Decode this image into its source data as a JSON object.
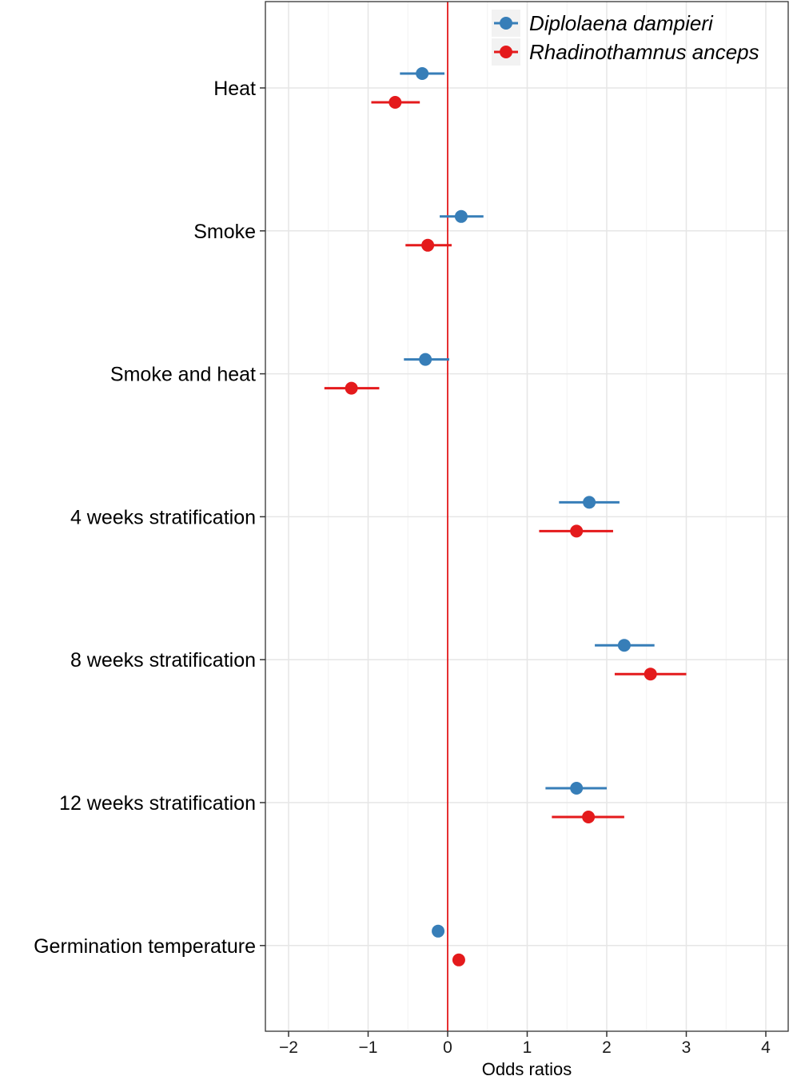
{
  "chart_data": {
    "type": "scatter",
    "subtype": "dot-and-whisker",
    "title": "",
    "xlabel": "Odds ratios",
    "ylabel": "",
    "xlim": [
      -2.3,
      4.3
    ],
    "xticks": [
      -2,
      -1,
      0,
      1,
      2,
      3,
      4
    ],
    "xtick_labels": [
      "−2",
      "−1",
      "0",
      "1",
      "2",
      "3",
      "4"
    ],
    "categories": [
      "Heat",
      "Smoke",
      "Smoke and heat",
      "4 weeks  stratification",
      "8 weeks  stratification",
      "12 weeks  stratification",
      "Germination temperature"
    ],
    "reference_line": {
      "x": 0,
      "color": "#e41a1c"
    },
    "grid": true,
    "legend_position": "top-right",
    "series": [
      {
        "name": "Diplolaena dampieri",
        "color": "#377eb8",
        "estimates": [
          -0.32,
          0.17,
          -0.28,
          1.78,
          2.22,
          1.62,
          -0.12
        ],
        "lower": [
          -0.6,
          -0.1,
          -0.55,
          1.4,
          1.85,
          1.23,
          -0.12
        ],
        "upper": [
          -0.04,
          0.45,
          0.02,
          2.16,
          2.6,
          2.0,
          -0.12
        ]
      },
      {
        "name": "Rhadinothamnus anceps",
        "color": "#e41a1c",
        "estimates": [
          -0.66,
          -0.25,
          -1.21,
          1.62,
          2.55,
          1.77,
          0.14
        ],
        "lower": [
          -0.96,
          -0.53,
          -1.55,
          1.15,
          2.1,
          1.31,
          0.14
        ],
        "upper": [
          -0.35,
          0.05,
          -0.86,
          2.08,
          3.0,
          2.22,
          0.14
        ]
      }
    ]
  }
}
